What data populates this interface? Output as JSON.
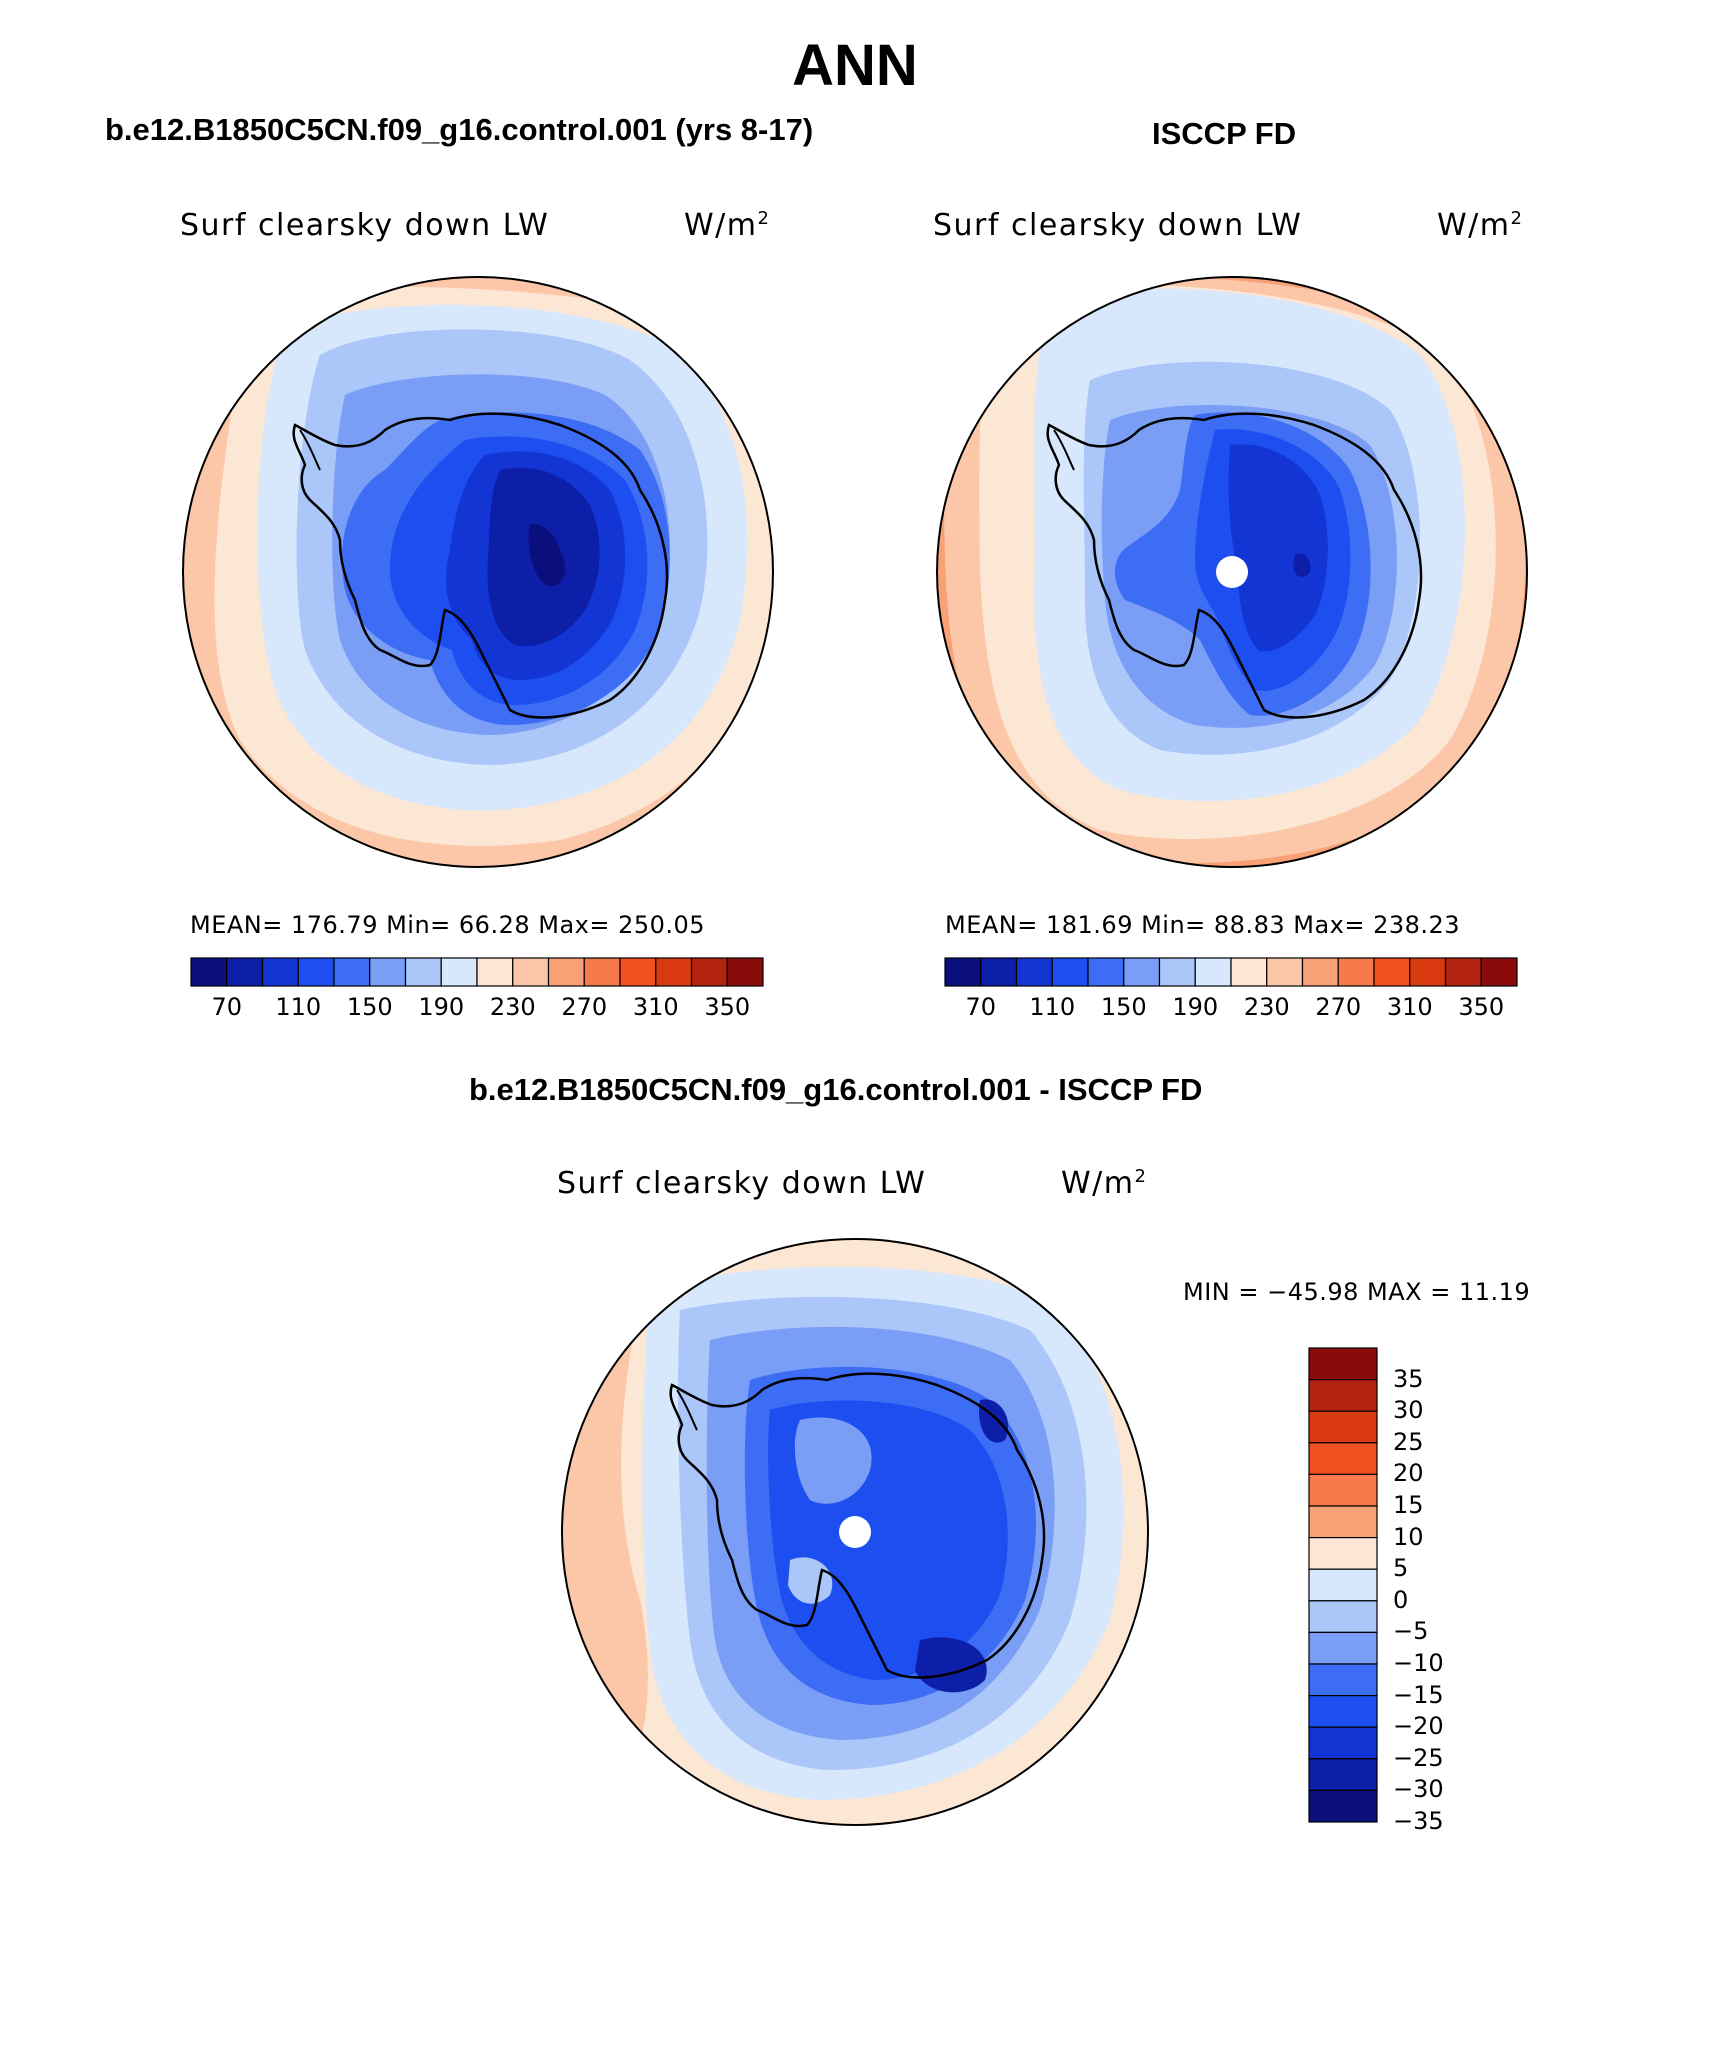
{
  "page_title": "ANN",
  "panels": [
    {
      "subtitle": "b.e12.B1850C5CN.f09_g16.control.001 (yrs 8-17)",
      "plot_title": "Surf clearsky down LW",
      "units_base": "W/m",
      "units_exp": "2",
      "stats": "MEAN= 176.79   Min=   66.28   Max= 250.05"
    },
    {
      "subtitle": "ISCCP FD",
      "plot_title": "Surf clearsky down LW",
      "units_base": "W/m",
      "units_exp": "2",
      "stats": "MEAN= 181.69   Min=   88.83   Max= 238.23"
    },
    {
      "subtitle": "b.e12.B1850C5CN.f09_g16.control.001 - ISCCP FD",
      "plot_title": "Surf clearsky down LW",
      "units_base": "W/m",
      "units_exp": "2",
      "stats": "MIN = −45.98 MAX =   11.19"
    }
  ],
  "colorbar_abs": {
    "colors": [
      "#0a0f7d",
      "#0d1fa8",
      "#1235d4",
      "#1d4ef0",
      "#3d6cf5",
      "#7a9ef5",
      "#abc6f8",
      "#d7e7fc",
      "#fce6d4",
      "#fbc7a8",
      "#f8a176",
      "#f67a4b",
      "#f2501f",
      "#d93a10",
      "#b22410",
      "#8b0a0a"
    ],
    "labels": [
      "70",
      "110",
      "150",
      "190",
      "230",
      "270",
      "310",
      "350"
    ]
  },
  "colorbar_diff": {
    "colors": [
      "#8b0a0a",
      "#b22410",
      "#d93a10",
      "#f2501f",
      "#f67a4b",
      "#f8a176",
      "#fce6d4",
      "#d7e7fc",
      "#abc6f8",
      "#7a9ef5",
      "#3d6cf5",
      "#1d4ef0",
      "#1235d4",
      "#0d1fa8",
      "#0a0f7d"
    ],
    "labels": [
      "35",
      "30",
      "25",
      "20",
      "15",
      "10",
      "5",
      "0",
      "−5",
      "−10",
      "−15",
      "−20",
      "−25",
      "−30",
      "−35"
    ]
  }
}
